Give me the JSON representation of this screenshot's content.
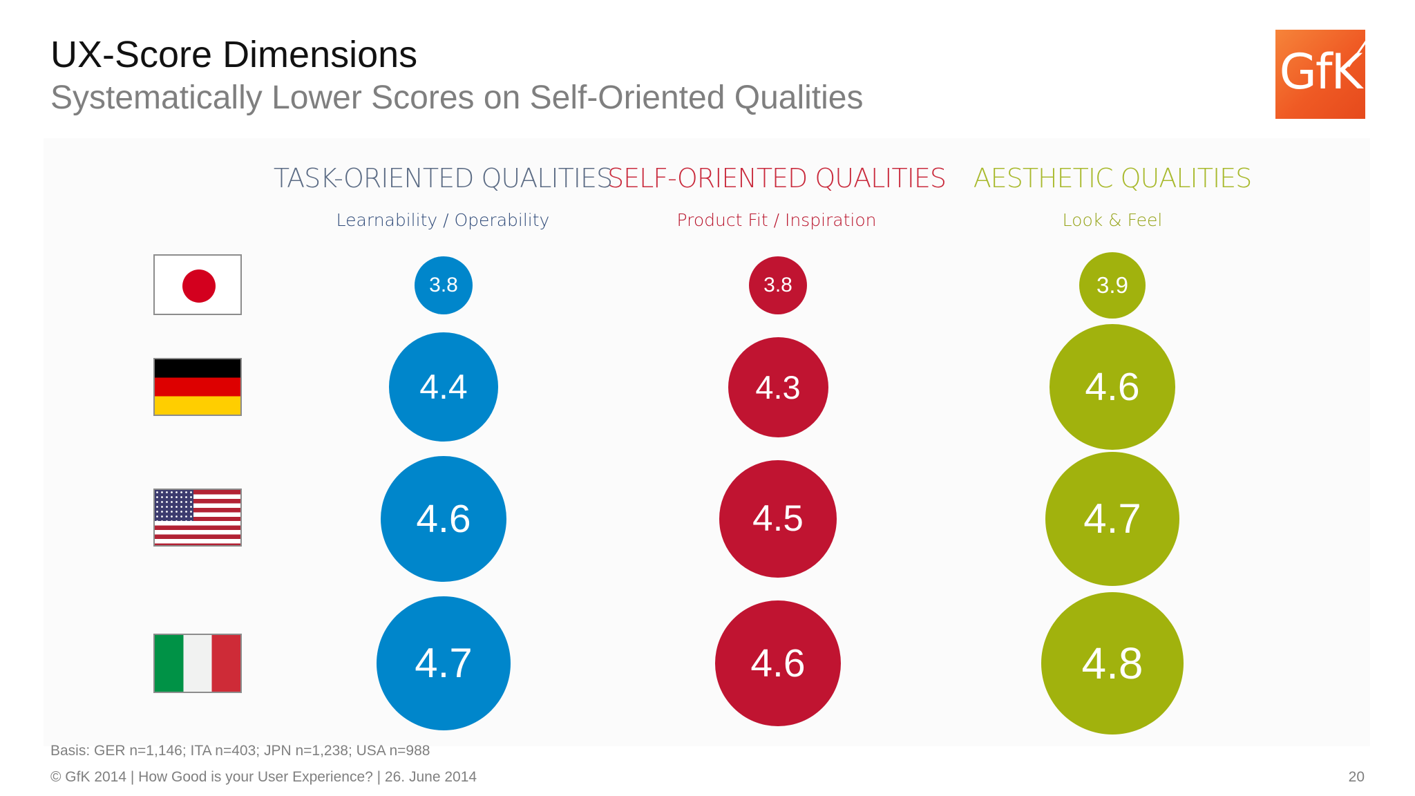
{
  "header": {
    "title": "UX-Score Dimensions",
    "subtitle": "Systematically Lower Scores on Self-Oriented Qualities",
    "logo_text": "GfK"
  },
  "colors": {
    "task": "#0086cb",
    "self": "#c01431",
    "aesthetic": "#a1b20d",
    "task_heading": "#5b6b84",
    "self_heading": "#c92a3c",
    "aesthetic_heading": "#a8b92c",
    "logo": "#ef5a24"
  },
  "chart_data": {
    "type": "bubble",
    "columns": [
      {
        "key": "task",
        "heading": "TASK-ORIENTED QUALITIES",
        "subheading": "Learnability / Operability"
      },
      {
        "key": "self",
        "heading": "SELF-ORIENTED QUALITIES",
        "subheading": "Product Fit / Inspiration"
      },
      {
        "key": "aesthetic",
        "heading": "AESTHETIC QUALITIES",
        "subheading": "Look & Feel"
      }
    ],
    "rows": [
      {
        "country": "Japan",
        "flag": "japan-flag",
        "task": 3.8,
        "self": 3.8,
        "aesthetic": 3.9
      },
      {
        "country": "Germany",
        "flag": "germany-flag",
        "task": 4.4,
        "self": 4.3,
        "aesthetic": 4.6
      },
      {
        "country": "USA",
        "flag": "usa-flag",
        "task": 4.6,
        "self": 4.5,
        "aesthetic": 4.7
      },
      {
        "country": "Italy",
        "flag": "italy-flag",
        "task": 4.7,
        "self": 4.6,
        "aesthetic": 4.8
      }
    ]
  },
  "footer": {
    "basis": "Basis:  GER n=1,146; ITA n=403; JPN n=1,238; USA n=988",
    "copyright": "© GfK 2014 | How Good is your User Experience? | 26. June 2014",
    "page": "20"
  }
}
